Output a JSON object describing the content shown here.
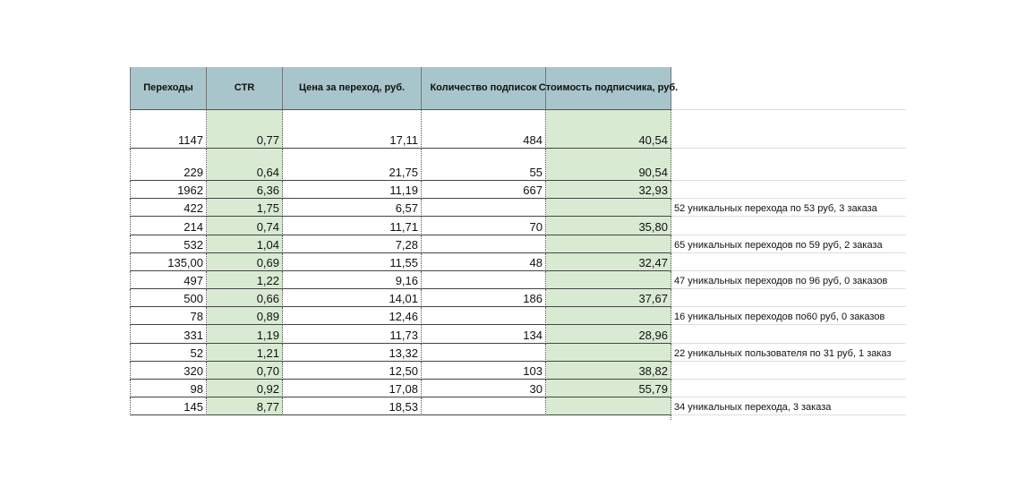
{
  "table": {
    "headers": [
      "Переходы",
      "CTR",
      "Цена за переход, руб.",
      "Количество подписок",
      "Стоимость подписчика, руб."
    ],
    "rows": [
      {
        "cells": [
          "1147",
          "0,77",
          "17,11",
          "484",
          "40,54"
        ]
      },
      {
        "cells": [
          "229",
          "0,64",
          "21,75",
          "55",
          "90,54"
        ]
      },
      {
        "cells": [
          "1962",
          "6,36",
          "11,19",
          "667",
          "32,93"
        ]
      },
      {
        "cells": [
          "422",
          "1,75",
          "6,57",
          null,
          null
        ],
        "note": "52 уникальных перехода по 53 руб, 3 заказа"
      },
      {
        "cells": [
          "214",
          "0,74",
          "11,71",
          "70",
          "35,80"
        ]
      },
      {
        "cells": [
          "532",
          "1,04",
          "7,28",
          null,
          null
        ],
        "note": "65 уникальных переходов по 59 руб, 2 заказа"
      },
      {
        "cells": [
          "135,00",
          "0,69",
          "11,55",
          "48",
          "32,47"
        ]
      },
      {
        "cells": [
          "497",
          "1,22",
          "9,16",
          null,
          null
        ],
        "note": "47 уникальных переходов по 96 руб, 0 заказов"
      },
      {
        "cells": [
          "500",
          "0,66",
          "14,01",
          "186",
          "37,67"
        ]
      },
      {
        "cells": [
          "78",
          "0,89",
          "12,46",
          null,
          null
        ],
        "note": "16 уникальных переходов по60 руб, 0 заказов"
      },
      {
        "cells": [
          "331",
          "1,19",
          "11,73",
          "134",
          "28,96"
        ]
      },
      {
        "cells": [
          "52",
          "1,21",
          "13,32",
          null,
          null
        ],
        "note": "22 уникальных пользователя по 31 руб, 1 заказ"
      },
      {
        "cells": [
          "320",
          "0,70",
          "12,50",
          "103",
          "38,82"
        ]
      },
      {
        "cells": [
          "98",
          "0,92",
          "17,08",
          "30",
          "55,79"
        ]
      },
      {
        "cells": [
          "145",
          "8,77",
          "18,53",
          null,
          null
        ],
        "note": "34 уникальных перехода, 3 заказа"
      }
    ]
  }
}
